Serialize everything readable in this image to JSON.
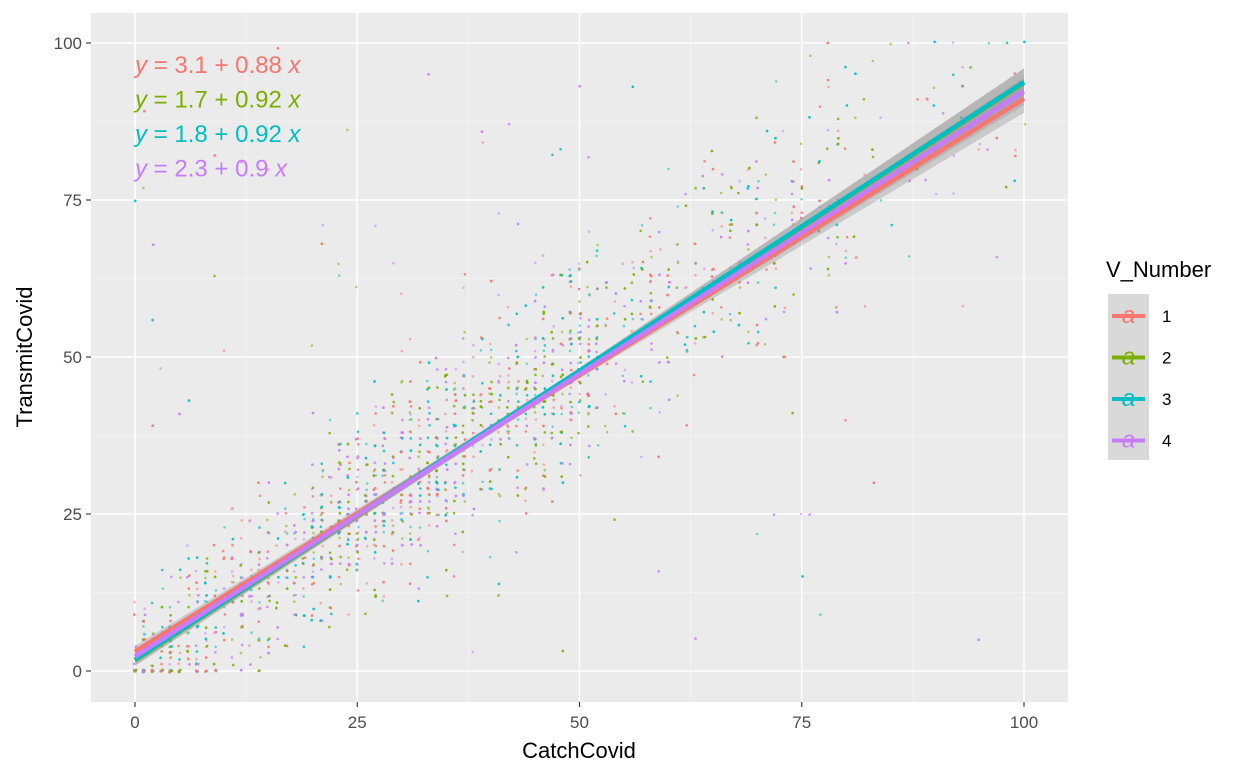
{
  "chart_data": {
    "type": "scatter",
    "title": "",
    "xlabel": "CatchCovid",
    "ylabel": "TransmitCovid",
    "xlim": [
      -5,
      105
    ],
    "ylim": [
      -5,
      103
    ],
    "x_ticks": [
      0,
      25,
      50,
      75,
      100
    ],
    "y_ticks": [
      0,
      25,
      50,
      75,
      100
    ],
    "x_tick_labels": [
      "0",
      "25",
      "50",
      "75",
      "100"
    ],
    "y_tick_labels": [
      "0",
      "25",
      "50",
      "75",
      "100"
    ],
    "grid": true,
    "legend": {
      "title": "V_Number",
      "position": "right",
      "key_glyph": "a"
    },
    "series": [
      {
        "name": "1",
        "color": "#F8766D",
        "intercept": 3.1,
        "slope": 0.88,
        "equation": {
          "lhs": "y",
          "eq": " = ",
          "intercept": "3.1",
          "plus": " + ",
          "slope": "0.88",
          "var": "x"
        }
      },
      {
        "name": "2",
        "color": "#7CAE00",
        "intercept": 1.7,
        "slope": 0.92,
        "equation": {
          "lhs": "y",
          "eq": " = ",
          "intercept": "1.7",
          "plus": " + ",
          "slope": "0.92",
          "var": "x"
        }
      },
      {
        "name": "3",
        "color": "#00BFC4",
        "intercept": 1.8,
        "slope": 0.92,
        "equation": {
          "lhs": "y",
          "eq": " = ",
          "intercept": "1.8",
          "plus": " + ",
          "slope": "0.92",
          "var": "x"
        }
      },
      {
        "name": "4",
        "color": "#C77CFF",
        "intercept": 2.3,
        "slope": 0.9,
        "equation": {
          "lhs": "y",
          "eq": " = ",
          "intercept": "2.3",
          "plus": " + ",
          "slope": "0.9",
          "var": "x"
        }
      }
    ],
    "points_description": "dense jittered scatter of survey responses (0-100 integer scale) clustered around the diagonal, heaviest for values 0-55",
    "confidence_band": true
  }
}
